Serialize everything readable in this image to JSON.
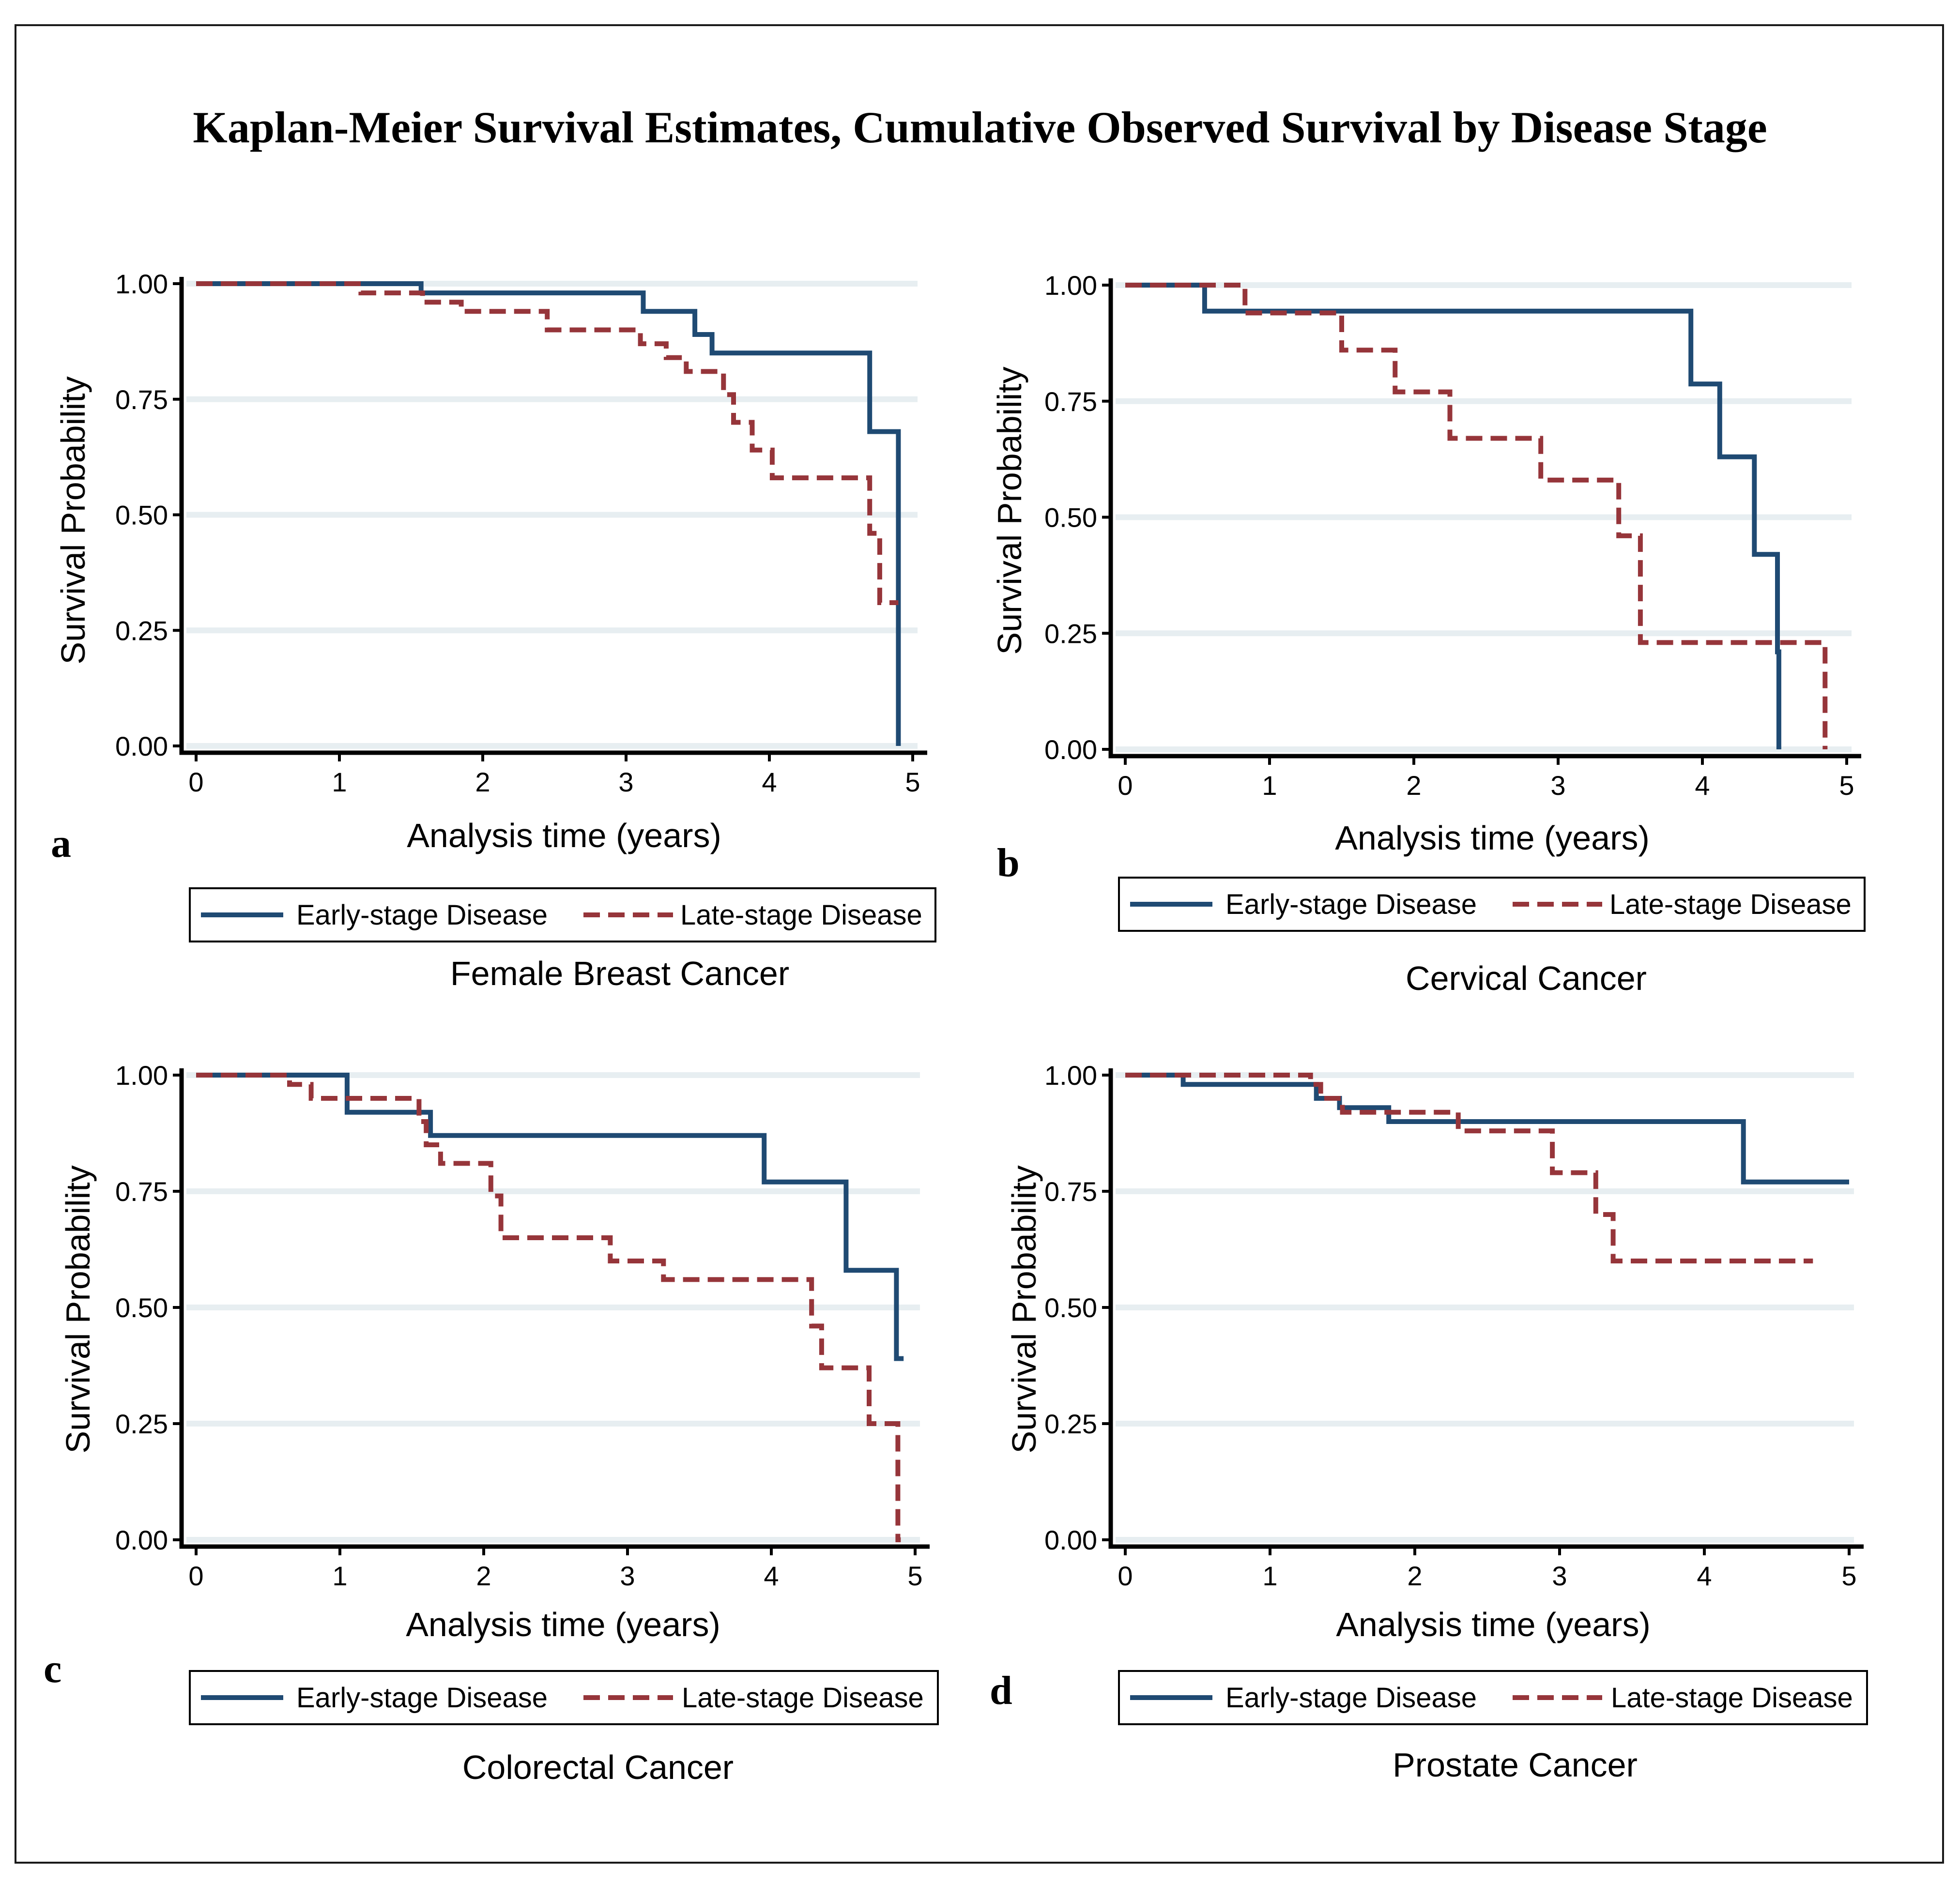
{
  "title": "Kaplan-Meier Survival Estimates,  Cumulative Observed Survival by Disease Stage",
  "colors": {
    "early": "#1f4a73",
    "late": "#96353a",
    "grid": "#e7eef1"
  },
  "chart_data": [
    {
      "type": "line",
      "letter": "a",
      "caption": "Female Breast Cancer",
      "xlabel": "Analysis time (years)",
      "ylabel": "Survival Probability",
      "xlim": [
        0,
        5
      ],
      "ylim": [
        0,
        1
      ],
      "xticks": [
        "0",
        "1",
        "2",
        "3",
        "4",
        "5"
      ],
      "yticks": [
        "0.00",
        "0.25",
        "0.50",
        "0.75",
        "1.00"
      ],
      "legend": [
        "Early-stage Disease",
        "Late-stage Disease"
      ],
      "series": [
        {
          "name": "Early-stage Disease",
          "style": "solid",
          "end": 4.9,
          "steps": [
            [
              0,
              1.0
            ],
            [
              1.57,
              0.98
            ],
            [
              3.12,
              0.94
            ],
            [
              3.48,
              0.89
            ],
            [
              3.6,
              0.85
            ],
            [
              4.7,
              0.68
            ],
            [
              4.9,
              0.0
            ]
          ]
        },
        {
          "name": "Late-stage Disease",
          "style": "dashed",
          "end": 4.9,
          "steps": [
            [
              0,
              1.0
            ],
            [
              1.15,
              0.98
            ],
            [
              1.58,
              0.96
            ],
            [
              1.85,
              0.94
            ],
            [
              2.45,
              0.9
            ],
            [
              3.1,
              0.87
            ],
            [
              3.28,
              0.84
            ],
            [
              3.42,
              0.81
            ],
            [
              3.68,
              0.76
            ],
            [
              3.75,
              0.7
            ],
            [
              3.88,
              0.64
            ],
            [
              4.02,
              0.58
            ],
            [
              4.7,
              0.46
            ],
            [
              4.77,
              0.31
            ]
          ]
        }
      ]
    },
    {
      "type": "line",
      "letter": "b",
      "caption": "Cervical Cancer",
      "xlabel": "Analysis time (years)",
      "ylabel": "Survival Probability",
      "xlim": [
        0,
        5
      ],
      "ylim": [
        0,
        1
      ],
      "xticks": [
        "0",
        "1",
        "2",
        "3",
        "4",
        "5"
      ],
      "yticks": [
        "0.00",
        "0.25",
        "0.50",
        "0.75",
        "1.00"
      ],
      "legend": [
        "Early-stage Disease",
        "Late-stage Disease"
      ],
      "series": [
        {
          "name": "Early-stage Disease",
          "style": "solid",
          "end": 4.53,
          "steps": [
            [
              0,
              1.0
            ],
            [
              0.55,
              0.944
            ],
            [
              3.92,
              0.787
            ],
            [
              4.12,
              0.63
            ],
            [
              4.36,
              0.42
            ],
            [
              4.52,
              0.21
            ],
            [
              4.53,
              0.0
            ]
          ]
        },
        {
          "name": "Late-stage Disease",
          "style": "dashed",
          "end": 4.85,
          "steps": [
            [
              0,
              1.0
            ],
            [
              0.83,
              0.94
            ],
            [
              1.5,
              0.86
            ],
            [
              1.87,
              0.77
            ],
            [
              2.25,
              0.67
            ],
            [
              2.88,
              0.58
            ],
            [
              3.42,
              0.46
            ],
            [
              3.57,
              0.23
            ],
            [
              4.85,
              0.0
            ]
          ]
        }
      ]
    },
    {
      "type": "line",
      "letter": "c",
      "caption": "Colorectal Cancer",
      "xlabel": "Analysis time (years)",
      "ylabel": "Survival Probability",
      "xlim": [
        0,
        5
      ],
      "ylim": [
        0,
        1
      ],
      "xticks": [
        "0",
        "1",
        "2",
        "3",
        "4",
        "5"
      ],
      "yticks": [
        "0.00",
        "0.25",
        "0.50",
        "0.75",
        "1.00"
      ],
      "legend": [
        "Early-stage Disease",
        "Late-stage Disease"
      ],
      "series": [
        {
          "name": "Early-stage Disease",
          "style": "solid",
          "end": 4.92,
          "steps": [
            [
              0,
              1.0
            ],
            [
              1.05,
              0.92
            ],
            [
              1.63,
              0.87
            ],
            [
              3.95,
              0.77
            ],
            [
              4.52,
              0.58
            ],
            [
              4.87,
              0.39
            ]
          ]
        },
        {
          "name": "Late-stage Disease",
          "style": "dashed",
          "end": 4.9,
          "steps": [
            [
              0,
              1.0
            ],
            [
              0.65,
              0.98
            ],
            [
              0.8,
              0.95
            ],
            [
              1.55,
              0.9
            ],
            [
              1.6,
              0.85
            ],
            [
              1.7,
              0.81
            ],
            [
              2.05,
              0.74
            ],
            [
              2.12,
              0.65
            ],
            [
              2.88,
              0.6
            ],
            [
              3.25,
              0.56
            ],
            [
              4.28,
              0.46
            ],
            [
              4.35,
              0.37
            ],
            [
              4.68,
              0.25
            ],
            [
              4.88,
              0.0
            ]
          ]
        }
      ]
    },
    {
      "type": "line",
      "letter": "d",
      "caption": "Prostate Cancer",
      "xlabel": "Analysis time (years)",
      "ylabel": "Survival Probability",
      "xlim": [
        0,
        5
      ],
      "ylim": [
        0,
        1
      ],
      "xticks": [
        "0",
        "1",
        "2",
        "3",
        "4",
        "5"
      ],
      "yticks": [
        "0.00",
        "0.25",
        "0.50",
        "0.75",
        "1.00"
      ],
      "legend": [
        "Early-stage Disease",
        "Late-stage Disease"
      ],
      "series": [
        {
          "name": "Early-stage Disease",
          "style": "solid",
          "end": 5.0,
          "steps": [
            [
              0,
              1.0
            ],
            [
              0.4,
              0.98
            ],
            [
              1.32,
              0.95
            ],
            [
              1.48,
              0.93
            ],
            [
              1.82,
              0.9
            ],
            [
              4.27,
              0.77
            ]
          ]
        },
        {
          "name": "Late-stage Disease",
          "style": "dashed",
          "end": 4.75,
          "steps": [
            [
              0,
              1.0
            ],
            [
              1.28,
              0.98
            ],
            [
              1.35,
              0.95
            ],
            [
              1.5,
              0.92
            ],
            [
              2.3,
              0.88
            ],
            [
              2.95,
              0.79
            ],
            [
              3.25,
              0.7
            ],
            [
              3.37,
              0.6
            ]
          ]
        }
      ]
    }
  ]
}
